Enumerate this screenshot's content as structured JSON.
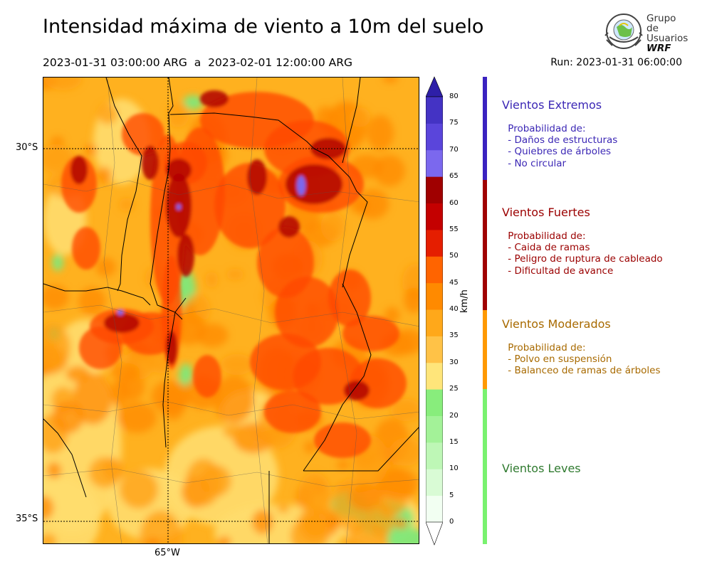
{
  "title": "Intensidad máxima de viento a 10m del suelo",
  "period": "2023-01-31 03:00:00 ARG  a  2023-02-01 12:00:00 ARG",
  "run": "Run: 2023-01-31 06:00:00",
  "logo": {
    "line1": "Grupo de",
    "line2": "Usuarios",
    "line3": "WRF"
  },
  "map": {
    "lat_labels": [
      "30°S",
      "35°S"
    ],
    "lon_labels": [
      "65°W"
    ],
    "variable": "Intensidad máxima de viento a 10m",
    "units": "km/h"
  },
  "colorbar": {
    "unit": "km/h",
    "ticks": [
      "0",
      "5",
      "10",
      "15",
      "20",
      "25",
      "30",
      "35",
      "40",
      "45",
      "50",
      "55",
      "60",
      "65",
      "70",
      "75",
      "80"
    ],
    "colors": [
      "#f2fff2",
      "#d9fbd5",
      "#bef7b6",
      "#a3f298",
      "#88ed7c",
      "#6ae763",
      "#ffe57a",
      "#ffc247",
      "#ffa81a",
      "#ff8a00",
      "#ff6400",
      "#ff3a00",
      "#e51e00",
      "#c40000",
      "#a00000",
      "#7b68ee",
      "#5a45db",
      "#4433c4",
      "#2e1fa8"
    ]
  },
  "categories": [
    {
      "title": "Vientos Extremos",
      "color": "#3b27b5",
      "bar_color": "#3a22c0",
      "desc": [
        " Probabilidad de:",
        " - Daños de estructuras",
        " - Quiebres de árboles",
        " - No circular"
      ]
    },
    {
      "title": "Vientos Fuertes",
      "color": "#9b0000",
      "bar_color": "#a00000",
      "desc": [
        " Probabilidad de:",
        " - Caida de ramas",
        " - Peligro de ruptura de cableado",
        " - Dificultad de avance"
      ]
    },
    {
      "title": "Vientos Moderados",
      "color": "#a86a00",
      "bar_color": "#ff9900",
      "desc": [
        " Probabilidad de:",
        " - Polvo en suspensión",
        " - Balanceo de ramas de árboles"
      ]
    },
    {
      "title": "Vientos Leves",
      "color": "#2f7a2f",
      "bar_color": "#79f26f",
      "desc": []
    }
  ]
}
